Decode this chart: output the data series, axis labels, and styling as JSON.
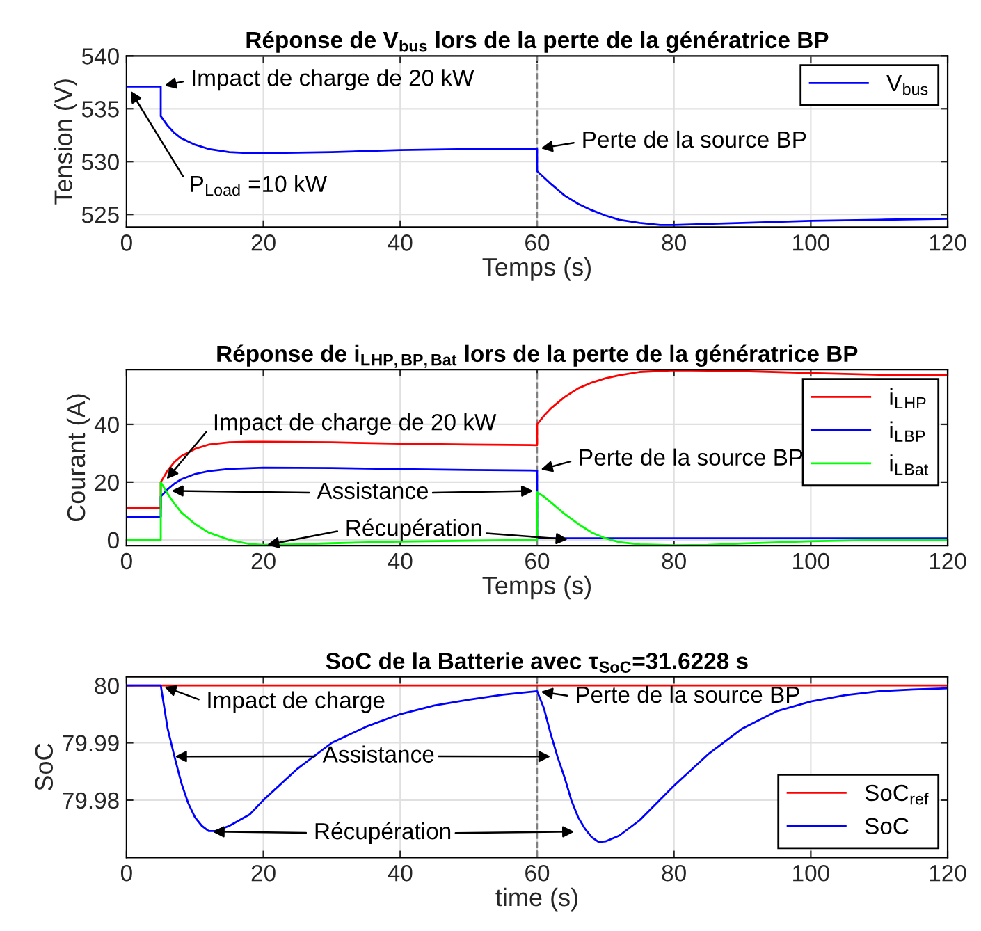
{
  "chart_data": [
    {
      "type": "line",
      "title": "Réponse de V$_{bus}$ lors de la perte de la génératrice BP",
      "xlabel": "Temps (s)",
      "ylabel": "Tension (V)",
      "xlim": [
        0,
        120
      ],
      "xticks": [
        0,
        20,
        40,
        60,
        80,
        100,
        120
      ],
      "ylim": [
        523.8,
        540
      ],
      "yticks": [
        525,
        530,
        535,
        540
      ],
      "grid": true,
      "legend": "top right",
      "series": [
        {
          "name": "V$_{bus}$",
          "color": "#0000ff",
          "x": [
            0,
            5,
            5,
            6,
            7,
            8,
            10,
            12,
            15,
            18,
            20,
            30,
            40,
            50,
            60,
            60,
            62,
            64,
            66,
            68,
            70,
            72,
            75,
            78,
            80,
            90,
            100,
            110,
            120
          ],
          "values": [
            537.1,
            537.1,
            534.3,
            533.4,
            532.7,
            532.2,
            531.6,
            531.2,
            530.9,
            530.8,
            530.8,
            530.9,
            531.1,
            531.2,
            531.2,
            529.1,
            527.9,
            526.8,
            526.0,
            525.4,
            524.9,
            524.5,
            524.2,
            524.0,
            524.0,
            524.2,
            524.4,
            524.5,
            524.6
          ]
        }
      ],
      "ref_lines": [
        {
          "axis": "x",
          "value": 60,
          "color": "#808080",
          "line_style": "dashed"
        }
      ],
      "annotations": [
        {
          "text": "Impact de charge de 20 kW",
          "x": 5,
          "y": 537.1
        },
        {
          "text": "P$_{Load}$ =10 kW",
          "x": 0.3,
          "y": 537
        },
        {
          "text": "Perte de la source BP",
          "x": 60,
          "y": 531.2
        }
      ]
    },
    {
      "type": "line",
      "title": "Réponse de i$_{L}$$_{HP,BP,Bat}$ lors de la perte de la génératrice BP",
      "xlabel": "Temps (s)",
      "ylabel": "Courant (A)",
      "xlim": [
        0,
        120
      ],
      "xticks": [
        0,
        20,
        40,
        60,
        80,
        100,
        120
      ],
      "ylim": [
        -2,
        59
      ],
      "yticks": [
        0,
        20,
        40
      ],
      "grid": true,
      "legend": "top right",
      "series": [
        {
          "name": "i$_{L}$$_{HP}$",
          "color": "#ff0000",
          "x": [
            0,
            5,
            5,
            6,
            7,
            8,
            10,
            12,
            15,
            18,
            20,
            30,
            40,
            50,
            60,
            60,
            61,
            62,
            64,
            66,
            68,
            70,
            72,
            75,
            80,
            90,
            100,
            110,
            120
          ],
          "values": [
            11,
            11,
            20,
            24,
            27,
            29,
            31.5,
            33,
            33.8,
            34,
            34,
            33.8,
            33.3,
            33,
            32.8,
            40,
            43,
            45.5,
            49.5,
            52.5,
            54.5,
            56,
            57,
            58.2,
            58.8,
            58.5,
            57.8,
            57.2,
            57
          ]
        },
        {
          "name": "i$_{L}$$_{BP}$",
          "color": "#0000ff",
          "x": [
            0,
            5,
            5,
            6,
            7,
            8,
            10,
            12,
            15,
            20,
            30,
            40,
            50,
            60,
            60,
            120
          ],
          "values": [
            8,
            8,
            15,
            17.5,
            19.5,
            21,
            22.8,
            23.8,
            24.6,
            25,
            24.9,
            24.5,
            24.2,
            24,
            0.5,
            0.5
          ]
        },
        {
          "name": "i$_{L}$$_{Bat}$",
          "color": "#00ff00",
          "x": [
            0,
            5,
            5,
            6,
            7,
            8,
            10,
            12,
            15,
            18,
            20,
            25,
            30,
            40,
            50,
            60,
            60,
            61,
            62,
            64,
            66,
            68,
            70,
            72,
            75,
            80,
            85,
            90,
            100,
            110,
            120
          ],
          "values": [
            0,
            0,
            20,
            16,
            12.5,
            9.5,
            5.5,
            2.5,
            0,
            -1.5,
            -1.8,
            -1.6,
            -1.2,
            -0.6,
            -0.3,
            0,
            16.5,
            15,
            13,
            9,
            5.5,
            2.5,
            0.5,
            -0.8,
            -1.6,
            -1.9,
            -1.8,
            -1.3,
            -0.5,
            0,
            0
          ]
        }
      ],
      "ref_lines": [
        {
          "axis": "x",
          "value": 60,
          "color": "#808080",
          "line_style": "dashed"
        }
      ],
      "annotations": [
        {
          "text": "Impact de charge de 20 kW",
          "x": 5.5,
          "y": 20
        },
        {
          "text": "Assistance",
          "x": 6,
          "y": 17
        },
        {
          "text": "Récupération",
          "x": 20,
          "y": -2
        },
        {
          "text": "Perte de la source BP",
          "x": 60,
          "y": 24
        }
      ]
    },
    {
      "type": "line",
      "title": "SoC de la Batterie avec τ$_{SoC}$=31.6228 s",
      "xlabel": "time (s)",
      "ylabel": "SoC",
      "xlim": [
        0,
        120
      ],
      "xticks": [
        0,
        20,
        40,
        60,
        80,
        100,
        120
      ],
      "ylim": [
        79.97,
        80.0015
      ],
      "yticks": [
        79.98,
        79.99,
        80
      ],
      "grid": true,
      "legend": "bottom right",
      "series": [
        {
          "name": "SoC$_{ref}$",
          "color": "#ff0000",
          "x": [
            0,
            120
          ],
          "values": [
            80,
            80
          ]
        },
        {
          "name": "SoC",
          "color": "#0000ff",
          "x": [
            0,
            5,
            6,
            7,
            8,
            9,
            10,
            11,
            12,
            13,
            15,
            18,
            20,
            25,
            30,
            35,
            40,
            45,
            50,
            55,
            60,
            61,
            62,
            63,
            64,
            65,
            66,
            67,
            68,
            69,
            70,
            72,
            75,
            80,
            85,
            90,
            95,
            100,
            105,
            110,
            115,
            120
          ],
          "values": [
            80,
            80,
            79.9925,
            79.9876,
            79.983,
            79.9795,
            79.977,
            79.9755,
            79.9746,
            79.9746,
            79.9755,
            79.9775,
            79.98,
            79.9855,
            79.99,
            79.9928,
            79.995,
            79.9965,
            79.9975,
            79.9984,
            79.999,
            79.996,
            79.9915,
            79.9875,
            79.984,
            79.98,
            79.977,
            79.975,
            79.9735,
            79.9727,
            79.9728,
            79.9738,
            79.9765,
            79.9825,
            79.988,
            79.9925,
            79.9955,
            79.9972,
            79.9983,
            79.999,
            79.9993,
            79.9995
          ]
        }
      ],
      "ref_lines": [
        {
          "axis": "x",
          "value": 60,
          "color": "#808080",
          "line_style": "dashed"
        }
      ],
      "annotations": [
        {
          "text": "Impact de charge",
          "x": 5,
          "y": 80
        },
        {
          "text": "Assistance",
          "x": 6.5,
          "y": 79.9876
        },
        {
          "text": "Récupération",
          "x": 12,
          "y": 79.9745
        },
        {
          "text": "Perte de la source BP",
          "x": 60,
          "y": 79.999
        }
      ]
    }
  ]
}
